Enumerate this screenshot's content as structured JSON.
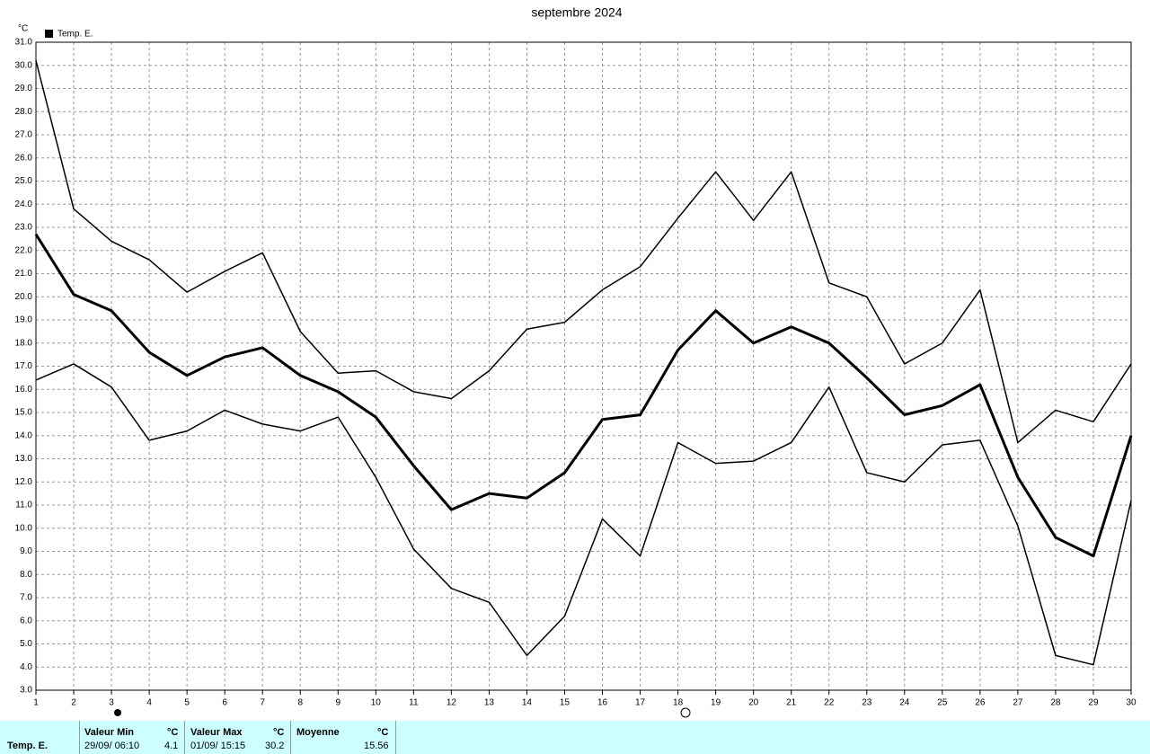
{
  "chart_data": {
    "type": "line",
    "title": "septembre 2024",
    "y_unit": "°C",
    "x": [
      1,
      2,
      3,
      4,
      5,
      6,
      7,
      8,
      9,
      10,
      11,
      12,
      13,
      14,
      15,
      16,
      17,
      18,
      19,
      20,
      21,
      22,
      23,
      24,
      25,
      26,
      27,
      28,
      29,
      30
    ],
    "xlim": [
      1,
      30
    ],
    "xticks": [
      1,
      2,
      3,
      4,
      5,
      6,
      7,
      8,
      9,
      10,
      11,
      12,
      13,
      14,
      15,
      16,
      17,
      18,
      19,
      20,
      21,
      22,
      23,
      24,
      25,
      26,
      27,
      28,
      29,
      30
    ],
    "ylim": [
      3,
      31
    ],
    "yticks": [
      {
        "value": 3,
        "label": "3.0"
      },
      {
        "value": 4,
        "label": "4.0"
      },
      {
        "value": 5,
        "label": "5.0"
      },
      {
        "value": 6,
        "label": "6.0"
      },
      {
        "value": 7,
        "label": "7.0"
      },
      {
        "value": 8,
        "label": "8.0"
      },
      {
        "value": 9,
        "label": "9.0"
      },
      {
        "value": 10,
        "label": "10.0"
      },
      {
        "value": 11,
        "label": "11.0"
      },
      {
        "value": 12,
        "label": "12.0"
      },
      {
        "value": 13,
        "label": "13.0"
      },
      {
        "value": 14,
        "label": "14.0"
      },
      {
        "value": 15,
        "label": "15.0"
      },
      {
        "value": 16,
        "label": "16.0"
      },
      {
        "value": 17,
        "label": "17.0"
      },
      {
        "value": 18,
        "label": "18.0"
      },
      {
        "value": 19,
        "label": "19.0"
      },
      {
        "value": 20,
        "label": "20.0"
      },
      {
        "value": 21,
        "label": "21.0"
      },
      {
        "value": 22,
        "label": "22.0"
      },
      {
        "value": 23,
        "label": "23.0"
      },
      {
        "value": 24,
        "label": "24.0"
      },
      {
        "value": 25,
        "label": "25.0"
      },
      {
        "value": 26,
        "label": "26.0"
      },
      {
        "value": 27,
        "label": "27.0"
      },
      {
        "value": 28,
        "label": "28.0"
      },
      {
        "value": 29,
        "label": "29.0"
      },
      {
        "value": 30,
        "label": "30.0"
      },
      {
        "value": 31,
        "label": "31.0"
      }
    ],
    "grid": true,
    "series": [
      {
        "name": "Temp. E.",
        "color": "#000000",
        "values": [
          22.7,
          20.1,
          19.4,
          17.6,
          16.6,
          17.4,
          17.8,
          16.6,
          15.9,
          14.8,
          12.7,
          10.8,
          11.5,
          11.3,
          12.4,
          14.7,
          14.9,
          17.7,
          19.4,
          18.0,
          18.7,
          18.0,
          16.5,
          14.9,
          15.3,
          16.2,
          12.2,
          9.6,
          8.8,
          14.0
        ],
        "max_values": [
          30.2,
          23.8,
          22.4,
          21.6,
          20.2,
          21.1,
          21.9,
          18.5,
          16.7,
          16.8,
          15.9,
          15.6,
          16.8,
          18.6,
          18.9,
          20.3,
          21.3,
          23.4,
          25.4,
          23.3,
          25.4,
          20.6,
          20.0,
          17.1,
          18.0,
          20.3,
          13.7,
          15.1,
          14.6,
          17.1
        ],
        "min_values": [
          16.4,
          17.1,
          16.1,
          13.8,
          14.2,
          15.1,
          14.5,
          14.2,
          14.8,
          12.2,
          9.1,
          7.4,
          6.8,
          4.5,
          6.2,
          10.4,
          8.8,
          13.7,
          12.8,
          12.9,
          13.7,
          16.1,
          12.4,
          12.0,
          13.6,
          13.8,
          10.1,
          4.5,
          4.1,
          11.2
        ]
      }
    ]
  },
  "summary": {
    "row_label": "Temp. E.",
    "min": {
      "header": "Valeur Min",
      "unit": "°C",
      "date": "29/09/ 06:10",
      "value": 4.1
    },
    "max": {
      "header": "Valeur Max",
      "unit": "°C",
      "date": "01/09/ 15:15",
      "value": 30.2
    },
    "mean": {
      "header": "Moyenne",
      "unit": "°C",
      "value": 15.56
    }
  }
}
